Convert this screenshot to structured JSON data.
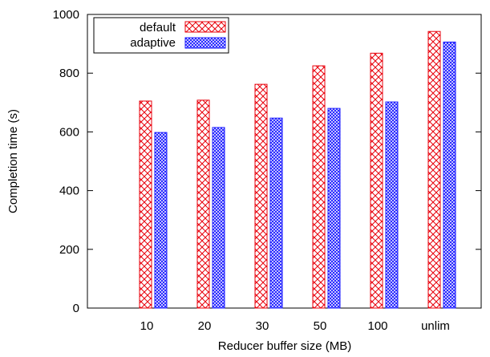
{
  "chart_data": {
    "type": "bar",
    "title": "",
    "xlabel": "Reducer buffer size (MB)",
    "ylabel": "Completion time (s)",
    "categories": [
      "10",
      "20",
      "30",
      "50",
      "100",
      "unlim"
    ],
    "ylim": [
      0,
      1000
    ],
    "yticks": [
      0,
      200,
      400,
      600,
      800,
      1000
    ],
    "grid": false,
    "legend_position": "top-left",
    "series": [
      {
        "name": "default",
        "values": [
          705,
          708,
          762,
          825,
          868,
          942
        ],
        "color": "#e8000b",
        "pattern": "crosshatch"
      },
      {
        "name": "adaptive",
        "values": [
          598,
          615,
          647,
          680,
          702,
          906
        ],
        "color": "#1a1aff",
        "pattern": "dense-dots"
      }
    ]
  }
}
